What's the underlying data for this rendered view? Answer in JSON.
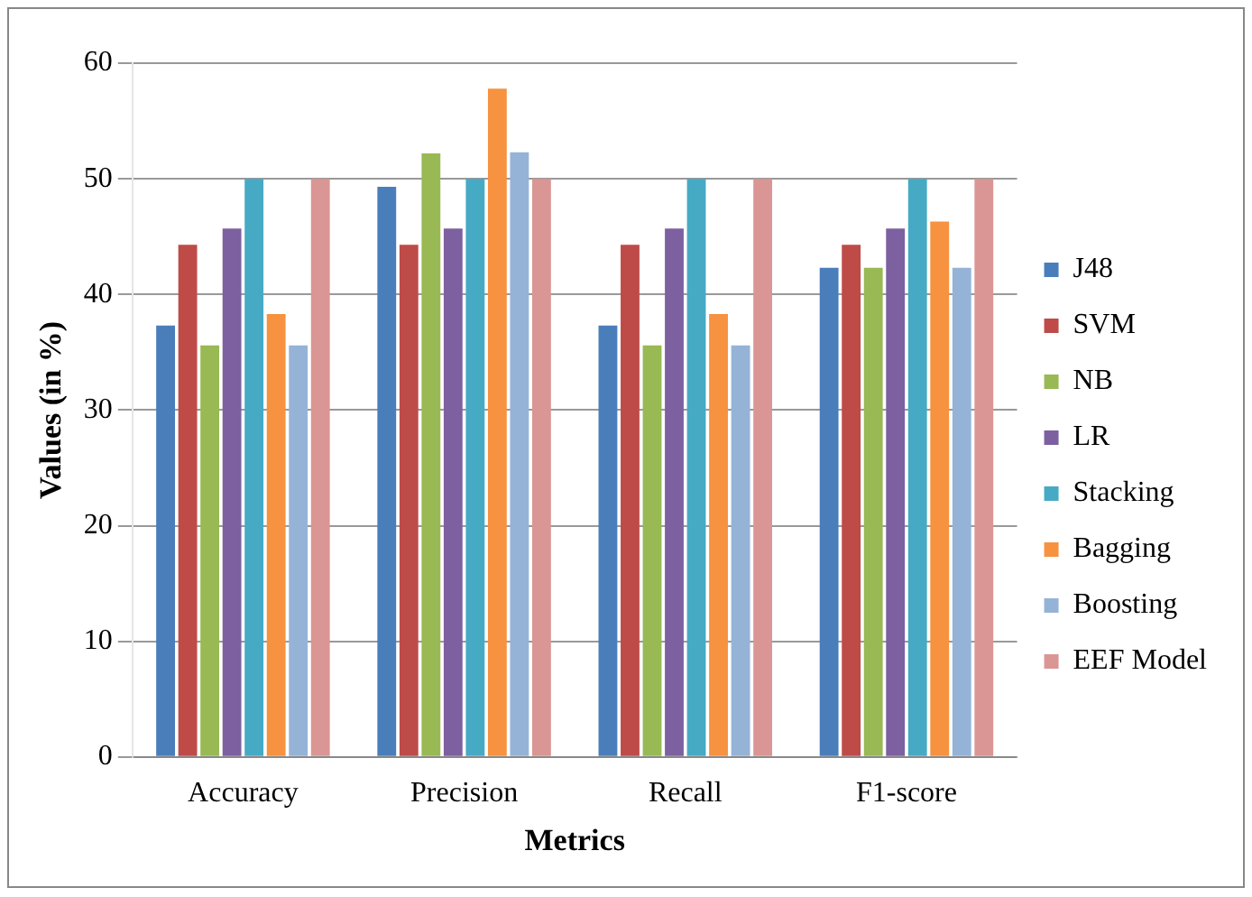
{
  "chart_data": {
    "type": "bar",
    "xlabel": "Metrics",
    "ylabel": "Values (in %)",
    "categories": [
      "Accuracy",
      "Precision",
      "Recall",
      "F1-score"
    ],
    "series": [
      {
        "name": "J48",
        "color": "#4a7ebb",
        "values": [
          37.3,
          49.3,
          37.3,
          42.3
        ]
      },
      {
        "name": "SVM",
        "color": "#be4b48",
        "values": [
          44.3,
          44.3,
          44.3,
          44.3
        ]
      },
      {
        "name": "NB",
        "color": "#98b954",
        "values": [
          35.6,
          52.2,
          35.6,
          42.3
        ]
      },
      {
        "name": "LR",
        "color": "#7d60a0",
        "values": [
          45.7,
          45.7,
          45.7,
          45.7
        ]
      },
      {
        "name": "Stacking",
        "color": "#46aac5",
        "values": [
          50,
          50,
          50,
          50
        ]
      },
      {
        "name": "Bagging",
        "color": "#f69240",
        "values": [
          38.3,
          57.8,
          38.3,
          46.3
        ]
      },
      {
        "name": "Boosting",
        "color": "#95b3d7",
        "values": [
          35.6,
          52.3,
          35.6,
          42.3
        ]
      },
      {
        "name": "EEF Model",
        "color": "#da9694",
        "values": [
          50,
          50,
          50,
          50
        ]
      }
    ],
    "ylim": [
      0,
      60
    ],
    "yticks": [
      0,
      10,
      20,
      30,
      40,
      50,
      60
    ],
    "grid": "y",
    "legend": "right"
  }
}
